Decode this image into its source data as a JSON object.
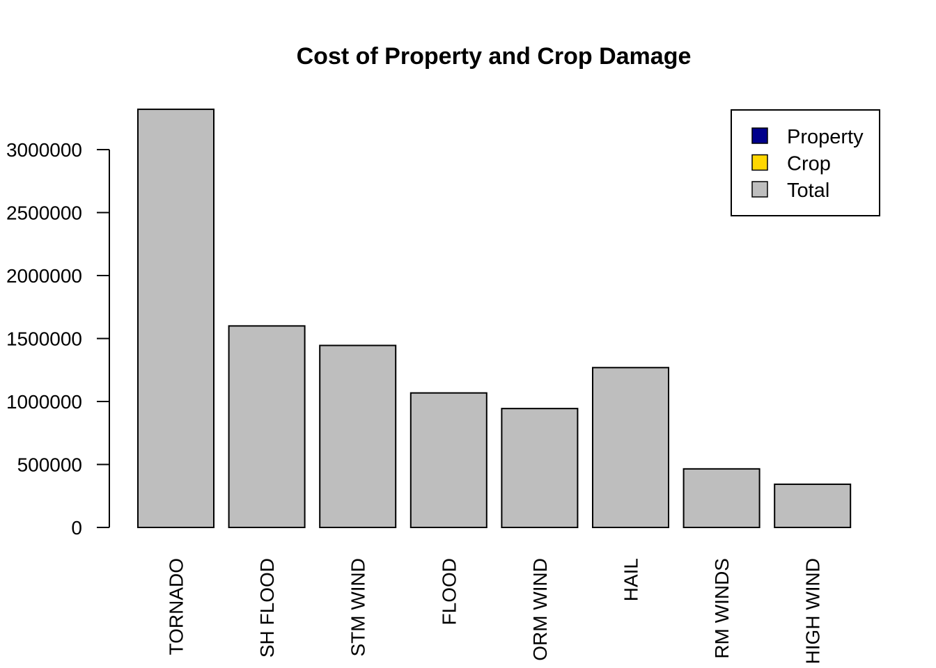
{
  "colors": {
    "property": "#00008B",
    "crop": "#FFD700",
    "total": "#BEBEBE",
    "stroke": "#000000",
    "background": "#FFFFFF"
  },
  "chart_data": {
    "type": "bar",
    "title": "Cost of Property and Crop Damage",
    "xlabel": "",
    "ylabel": "",
    "categories": [
      "TORNADO",
      "SH FLOOD",
      "STM WIND",
      "FLOOD",
      "ORM WIND",
      "HAIL",
      "RM WINDS",
      "HIGH WIND"
    ],
    "series": [
      {
        "name": "Total",
        "values": [
          3320000,
          1600000,
          1445000,
          1068000,
          944000,
          1269000,
          465000,
          343000
        ]
      }
    ],
    "yticks": [
      0,
      500000,
      1000000,
      1500000,
      2000000,
      2500000,
      3000000
    ],
    "ytick_labels": [
      "0",
      "500000",
      "1000000",
      "1500000",
      "2000000",
      "2500000",
      "3000000"
    ],
    "ylim": [
      0,
      3320000
    ],
    "grid": false,
    "legend": {
      "placement": "top-right",
      "entries": [
        {
          "label": "Property",
          "color": "#00008B"
        },
        {
          "label": "Crop",
          "color": "#FFD700"
        },
        {
          "label": "Total",
          "color": "#BEBEBE"
        }
      ]
    }
  }
}
